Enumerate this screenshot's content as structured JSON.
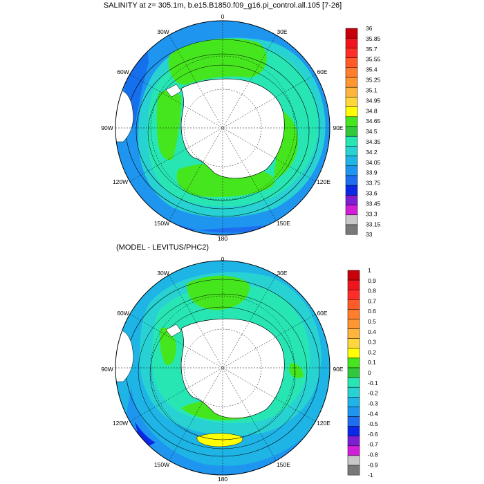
{
  "panel_top": {
    "title": "SALINITY at z= 305.1m, b.e15.B1850.f09_g16.pi_control.all.105 [7-26]",
    "lon_labels": [
      "0",
      "30E",
      "60E",
      "90E",
      "120E",
      "150E",
      "180",
      "150W",
      "120W",
      "90W",
      "60W",
      "30W"
    ],
    "colorbar_labels": [
      "36",
      "35.85",
      "35.7",
      "35.55",
      "35.4",
      "35.25",
      "35.1",
      "34.95",
      "34.8",
      "34.65",
      "34.5",
      "34.35",
      "34.2",
      "34.05",
      "33.9",
      "33.75",
      "33.6",
      "33.45",
      "33.3",
      "33.15",
      "33"
    ],
    "colors": [
      "#c8000a",
      "#f0141e",
      "#ff2d28",
      "#ff5a28",
      "#ff7d2d",
      "#ff9632",
      "#ffb43c",
      "#ffd73c",
      "#ffff00",
      "#46e61e",
      "#32c83c",
      "#28e6b4",
      "#28d2d2",
      "#1eb4e6",
      "#1e96f0",
      "#1e6ef0",
      "#0a28e6",
      "#7d1ed2",
      "#d21ed7",
      "#c8c8c8",
      "#787878"
    ]
  },
  "panel_bottom": {
    "title": "(MODEL - LEVITUS/PHC2)",
    "lon_labels": [
      "0",
      "30E",
      "60E",
      "90E",
      "120E",
      "150E",
      "180",
      "150W",
      "120W",
      "90W",
      "60W",
      "30W"
    ],
    "colorbar_labels": [
      "1",
      "0.9",
      "0.8",
      "0.7",
      "0.6",
      "0.5",
      "0.4",
      "0.3",
      "0.2",
      "0.1",
      "0",
      "-0.1",
      "-0.2",
      "-0.3",
      "-0.4",
      "-0.5",
      "-0.6",
      "-0.7",
      "-0.8",
      "-0.9",
      "-1"
    ],
    "colors": [
      "#c8000a",
      "#f0141e",
      "#ff2d28",
      "#ff5a28",
      "#ff7d2d",
      "#ff9632",
      "#ffb43c",
      "#ffd73c",
      "#ffff00",
      "#46e61e",
      "#32c83c",
      "#28e6b4",
      "#28d2d2",
      "#1eb4e6",
      "#1e96f0",
      "#1e6ef0",
      "#0a28e6",
      "#7d1ed2",
      "#d21ed7",
      "#c8c8c8",
      "#787878"
    ]
  }
}
